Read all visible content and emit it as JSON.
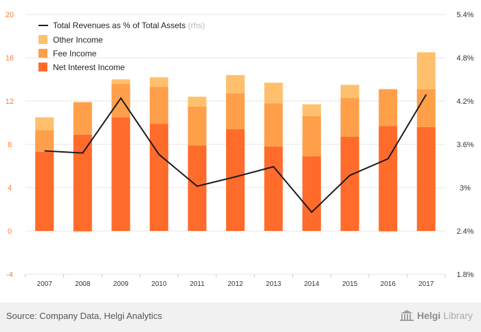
{
  "chart_data": {
    "type": "bar",
    "stacked": true,
    "categories": [
      "2007",
      "2008",
      "2009",
      "2010",
      "2011",
      "2012",
      "2013",
      "2014",
      "2015",
      "2016",
      "2017"
    ],
    "series": [
      {
        "name": "Net Interest Income",
        "color": "#ff6b2b",
        "values": [
          7.3,
          8.9,
          10.5,
          9.9,
          7.9,
          9.4,
          7.8,
          6.9,
          8.7,
          9.7,
          9.6
        ]
      },
      {
        "name": "Fee Income",
        "color": "#ff9f4a",
        "values": [
          2.0,
          3.0,
          3.1,
          3.4,
          3.6,
          3.3,
          4.0,
          3.7,
          3.6,
          3.4,
          3.5
        ]
      },
      {
        "name": "Other Income",
        "color": "#ffc06e",
        "values": [
          1.2,
          -0.1,
          0.4,
          0.9,
          0.9,
          1.7,
          1.9,
          1.1,
          1.2,
          -0.1,
          3.4
        ]
      }
    ],
    "line": {
      "name": "Total Revenues as % of Total Assets",
      "suffix": "(rhs)",
      "color": "#1a1a1a",
      "values": [
        3.51,
        3.48,
        4.24,
        3.46,
        3.02,
        3.15,
        3.29,
        2.66,
        3.17,
        3.4,
        4.29
      ]
    },
    "y_left": {
      "min": -4,
      "max": 20,
      "ticks": [
        "-4",
        "0",
        "4",
        "8",
        "12",
        "16",
        "20"
      ]
    },
    "y_right": {
      "min": 1.8,
      "max": 5.4,
      "ticks": [
        "1.8%",
        "2.4%",
        "3%",
        "3.6%",
        "4.2%",
        "4.8%",
        "5.4%"
      ]
    },
    "legend_placement": "top-left",
    "grid": true
  },
  "footer": {
    "source": "Source: Company Data, Helgi Analytics",
    "brand_a": "Helgi",
    "brand_b": "Library"
  },
  "colors": {
    "left_axis": "#ff7a33",
    "grid": "#e4e4e4",
    "axis_text": "#333333"
  }
}
